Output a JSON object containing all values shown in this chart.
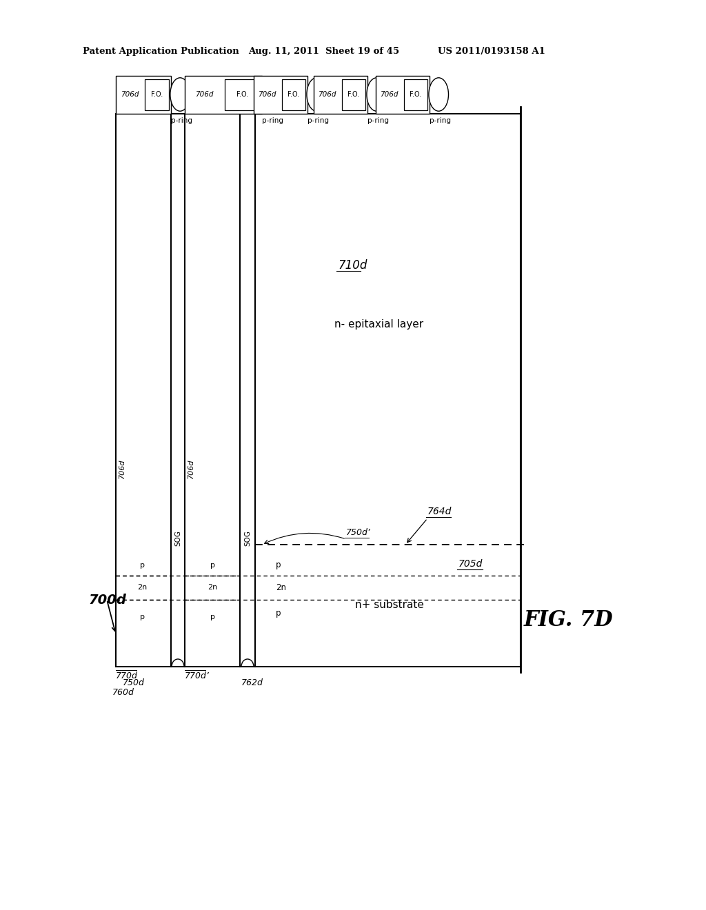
{
  "bg_color": "#ffffff",
  "header_left": "Patent Application Publication",
  "header_mid": "Aug. 11, 2011  Sheet 19 of 45",
  "header_right": "US 2011/0193158 A1",
  "fig_label": "FIG. 7D",
  "label_700d": "700d",
  "label_770d": "770d",
  "label_770d_p": "770d’",
  "label_710d": "710d",
  "label_705d": "705d",
  "label_764d": "764d",
  "label_750d": "750d",
  "label_750d_p": "750d’",
  "label_760d": "760d",
  "label_762d": "762d",
  "label_706d": "706d",
  "label_sog": "SOG",
  "label_fo": "F.O.",
  "label_pring": "p-ring",
  "label_nepi": "n- epitaxial layer",
  "label_nplus": "n+ substrate",
  "label_p": "p",
  "label_2n": "2n"
}
